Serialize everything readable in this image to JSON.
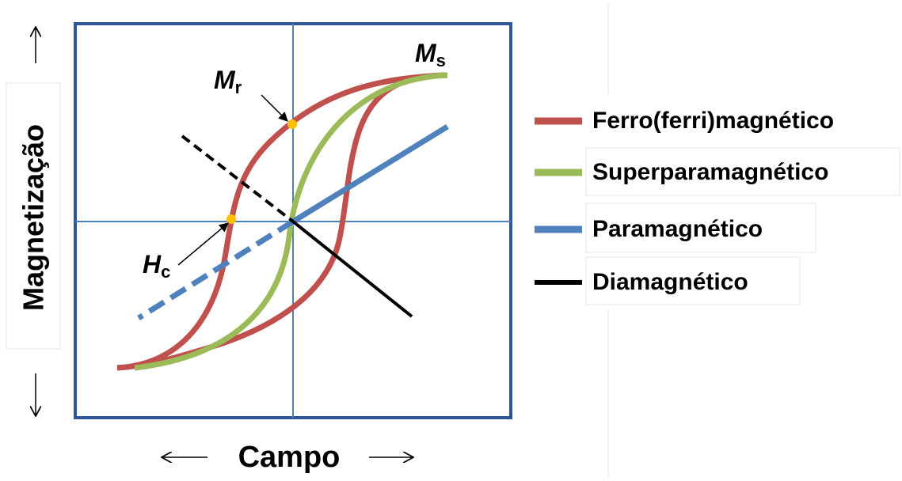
{
  "axes": {
    "y_label": "Magnetização",
    "x_label": "Campo"
  },
  "annotations": {
    "saturation": {
      "symbol": "M",
      "subscript": "s"
    },
    "remanence": {
      "symbol": "M",
      "subscript": "r"
    },
    "coercivity": {
      "symbol": "H",
      "subscript": "c"
    }
  },
  "legend": [
    "Ferro(ferri)magnético",
    "Superparamagnético",
    "Paramagnético",
    "Diamagnético"
  ]
}
